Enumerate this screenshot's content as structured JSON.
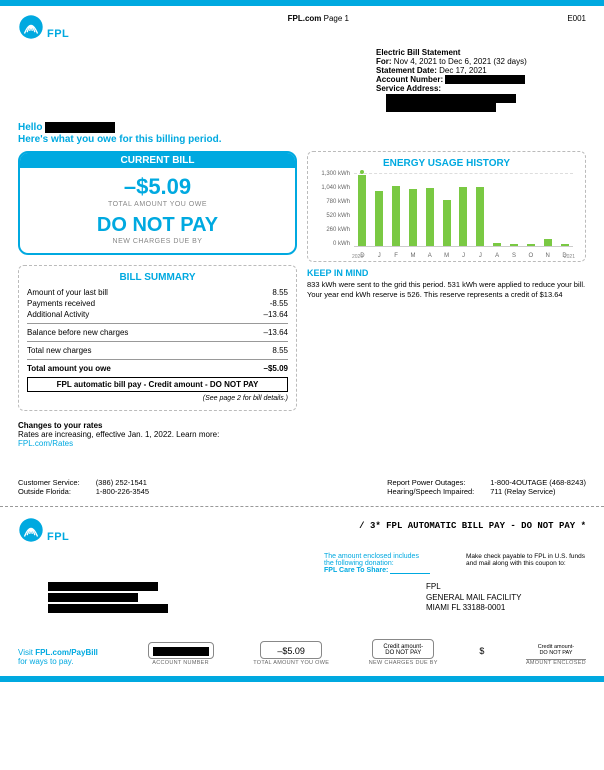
{
  "brand": {
    "name": "FPL",
    "primary_color": "#00a9e0",
    "bar_color": "#7ac943"
  },
  "header": {
    "site": "FPL.com",
    "page_label": "Page 1",
    "ecode": "E001",
    "statement_title": "Electric Bill Statement",
    "for_label": "For:",
    "for_value": "Nov 4, 2021 to Dec 6, 2021 (32 days)",
    "stmt_date_label": "Statement Date:",
    "stmt_date_value": "Dec 17, 2021",
    "acct_label": "Account Number:",
    "svc_label": "Service Address:"
  },
  "hello": {
    "greeting": "Hello",
    "sub": "Here's what you owe for this billing period."
  },
  "current_bill": {
    "title": "CURRENT BILL",
    "amount": "–$5.09",
    "amount_sub": "TOTAL AMOUNT YOU OWE",
    "dnp": "DO NOT PAY",
    "dnp_sub": "NEW CHARGES DUE BY"
  },
  "chart": {
    "title": "ENERGY USAGE HISTORY",
    "y_unit_suffix": " kWh",
    "y_ticks": [
      "1,300",
      "1,040",
      "780",
      "520",
      "260",
      "0"
    ],
    "y_max": 1300,
    "months": [
      "D",
      "J",
      "F",
      "M",
      "A",
      "M",
      "J",
      "J",
      "A",
      "S",
      "O",
      "N",
      "D"
    ],
    "values": [
      1260,
      980,
      1060,
      1000,
      1020,
      820,
      1040,
      1050,
      60,
      40,
      40,
      120,
      40
    ],
    "year_left": "2020",
    "year_right": "2021",
    "show_dot_index": 0
  },
  "keep_in_mind": {
    "title": "KEEP IN MIND",
    "text": "833 kWh were sent to the grid this period. 531 kWh were applied to reduce your bill. Your year end kWh reserve is 526. This reserve represents a credit of $13.64"
  },
  "summary": {
    "title": "BILL SUMMARY",
    "rows": [
      {
        "label": "Amount of your last bill",
        "value": "8.55"
      },
      {
        "label": "Payments received",
        "value": "-8.55"
      },
      {
        "label": "Additional Activity",
        "value": "–13.64"
      }
    ],
    "balance_label": "Balance before new charges",
    "balance_value": "–13.64",
    "new_charges_label": "Total new charges",
    "new_charges_value": "8.55",
    "total_label": "Total amount you owe",
    "total_value": "–$5.09",
    "note": "FPL automatic bill pay - Credit amount - DO NOT PAY",
    "see_more": "(See page 2 for bill details.)"
  },
  "changes": {
    "title": "Changes to your rates",
    "text": "Rates are increasing, effective Jan. 1, 2022. Learn more:",
    "link": "FPL.com/Rates"
  },
  "contacts": {
    "cs_label": "Customer Service:",
    "cs_value": "(386) 252-1541",
    "of_label": "Outside Florida:",
    "of_value": "1-800-226-3545",
    "outage_label": "Report Power Outages:",
    "outage_value": "1-800-4OUTAGE (468-8243)",
    "relay_label": "Hearing/Speech Impaired:",
    "relay_value": "711 (Relay Service)"
  },
  "stub": {
    "banner": "/   3* FPL AUTOMATIC BILL PAY - DO NOT PAY *",
    "donation_l1": "The amount enclosed includes",
    "donation_l2": "the following donation:",
    "donation_l3": "FPL Care To Share:",
    "check_text": "Make check payable to FPL in U.S. funds and mail along with this coupon to:",
    "mail_to_l1": "FPL",
    "mail_to_l2": "GENERAL MAIL FACILITY",
    "mail_to_l3": "MIAMI FL 33188-0001",
    "visit_prefix": "Visit ",
    "visit_link": "FPL.com/PayBill",
    "visit_suffix": "for ways to pay.",
    "boxes": {
      "acct_label": "ACCOUNT NUMBER",
      "owe_value": "–$5.09",
      "owe_label": "TOTAL AMOUNT YOU OWE",
      "due_l1": "Credit amount-",
      "due_l2": "DO NOT PAY",
      "due_label": "NEW CHARGES DUE BY",
      "amt_l1": "Credit amount-",
      "amt_l2": "DO NOT PAY",
      "amt_label": "AMOUNT ENCLOSED"
    }
  }
}
